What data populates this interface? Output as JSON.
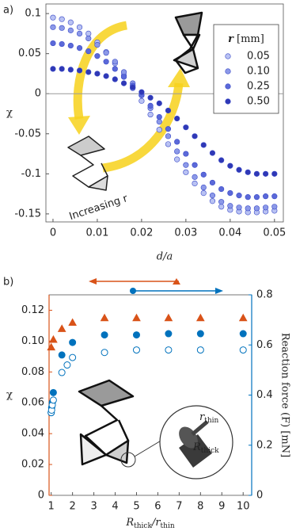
{
  "chart_data": [
    {
      "type": "scatter",
      "panel_label": "a)",
      "x_label": "d/a",
      "y_label": "χ",
      "annotation": "Increasing r",
      "legend_title": [
        "r",
        "[mm]"
      ],
      "legend": "upper right",
      "zero_line": true,
      "x": [
        0,
        0.002,
        0.004,
        0.006,
        0.008,
        0.01,
        0.012,
        0.014,
        0.016,
        0.018,
        0.02,
        0.022,
        0.024,
        0.026,
        0.028,
        0.03,
        0.032,
        0.034,
        0.036,
        0.038,
        0.04,
        0.042,
        0.044,
        0.046,
        0.048,
        0.05
      ],
      "series": [
        {
          "name": "0.05",
          "color": "#b9c2f3",
          "values": [
            0.095,
            0.093,
            0.089,
            0.083,
            0.075,
            0.064,
            0.052,
            0.038,
            0.023,
            0.007,
            -0.009,
            -0.026,
            -0.045,
            -0.063,
            -0.082,
            -0.098,
            -0.112,
            -0.124,
            -0.134,
            -0.141,
            -0.145,
            -0.147,
            -0.148,
            -0.148,
            -0.147,
            -0.146
          ]
        },
        {
          "name": "0.10",
          "color": "#8c99e8",
          "values": [
            0.083,
            0.082,
            0.079,
            0.075,
            0.069,
            0.061,
            0.051,
            0.04,
            0.027,
            0.013,
            -0.002,
            -0.018,
            -0.035,
            -0.053,
            -0.072,
            -0.089,
            -0.104,
            -0.117,
            -0.127,
            -0.135,
            -0.14,
            -0.142,
            -0.143,
            -0.143,
            -0.142,
            -0.141
          ]
        },
        {
          "name": "0.25",
          "color": "#5b69d9",
          "values": [
            0.063,
            0.062,
            0.06,
            0.057,
            0.053,
            0.047,
            0.04,
            0.031,
            0.021,
            0.01,
            -0.002,
            -0.015,
            -0.029,
            -0.044,
            -0.06,
            -0.075,
            -0.089,
            -0.101,
            -0.111,
            -0.119,
            -0.124,
            -0.127,
            -0.129,
            -0.129,
            -0.128,
            -0.128
          ]
        },
        {
          "name": "0.50",
          "color": "#2f38b6",
          "values": [
            0.031,
            0.031,
            0.03,
            0.029,
            0.027,
            0.025,
            0.022,
            0.018,
            0.013,
            0.008,
            0.002,
            -0.005,
            -0.012,
            -0.021,
            -0.031,
            -0.042,
            -0.053,
            -0.064,
            -0.074,
            -0.083,
            -0.09,
            -0.095,
            -0.098,
            -0.1,
            -0.1,
            -0.1
          ]
        }
      ],
      "xlim": [
        -0.0016,
        0.052
      ],
      "xticks": [
        0,
        0.01,
        0.02,
        0.03,
        0.04,
        0.05
      ],
      "ylim": [
        -0.16,
        0.112
      ],
      "yticks": [
        -0.15,
        -0.1,
        -0.05,
        0,
        0.05,
        0.1
      ]
    },
    {
      "type": "scatter",
      "panel_label": "b)",
      "x_label": [
        "R",
        "thick",
        "/r",
        "thin"
      ],
      "y_label": "χ",
      "y2_label": "Reaction force (F) [mN]",
      "y_color": "#d95319",
      "y2_color": "#0072bd",
      "inset_labels": [
        [
          "r",
          "thin"
        ],
        [
          "R",
          "thick"
        ]
      ],
      "series": [
        {
          "color": "#d95319",
          "marker": "triangle",
          "fill": true,
          "x": [
            1,
            1.1,
            1.5,
            2,
            3.5,
            5,
            6.5,
            8,
            10
          ],
          "values": [
            0.096,
            0.101,
            0.108,
            0.112,
            0.115,
            0.115,
            0.115,
            0.115,
            0.115
          ]
        },
        {
          "color": "#0072bd",
          "marker": "circle",
          "fill": true,
          "axis": "y2",
          "x": [
            1,
            1.02,
            1.05,
            1.1,
            1.5,
            2,
            3.5,
            5,
            6.5,
            8,
            10
          ],
          "values": [
            0.33,
            0.35,
            0.37,
            0.41,
            0.56,
            0.61,
            0.64,
            0.64,
            0.645,
            0.645,
            0.645
          ]
        },
        {
          "color": "#0072bd",
          "marker": "circle",
          "fill": false,
          "axis": "y2",
          "x": [
            1,
            1.02,
            1.05,
            1.1,
            1.5,
            1.75,
            2,
            3.5,
            5,
            6.5,
            8,
            10
          ],
          "values": [
            0.33,
            0.34,
            0.36,
            0.38,
            0.49,
            0.52,
            0.55,
            0.57,
            0.58,
            0.58,
            0.58,
            0.58
          ]
        }
      ],
      "xlim": [
        0.9,
        10.4
      ],
      "xticks": [
        1,
        2,
        3,
        4,
        5,
        6,
        7,
        8,
        9,
        10
      ],
      "ylim": [
        0,
        0.13
      ],
      "yticks": [
        0,
        0.02,
        0.04,
        0.06,
        0.08,
        {
          "value": 0.1,
          "label": "0.10"
        },
        0.12
      ],
      "y2lim": [
        0,
        0.8
      ],
      "y2ticks": [
        0,
        0.2,
        0.4,
        0.6,
        0.8
      ]
    }
  ]
}
